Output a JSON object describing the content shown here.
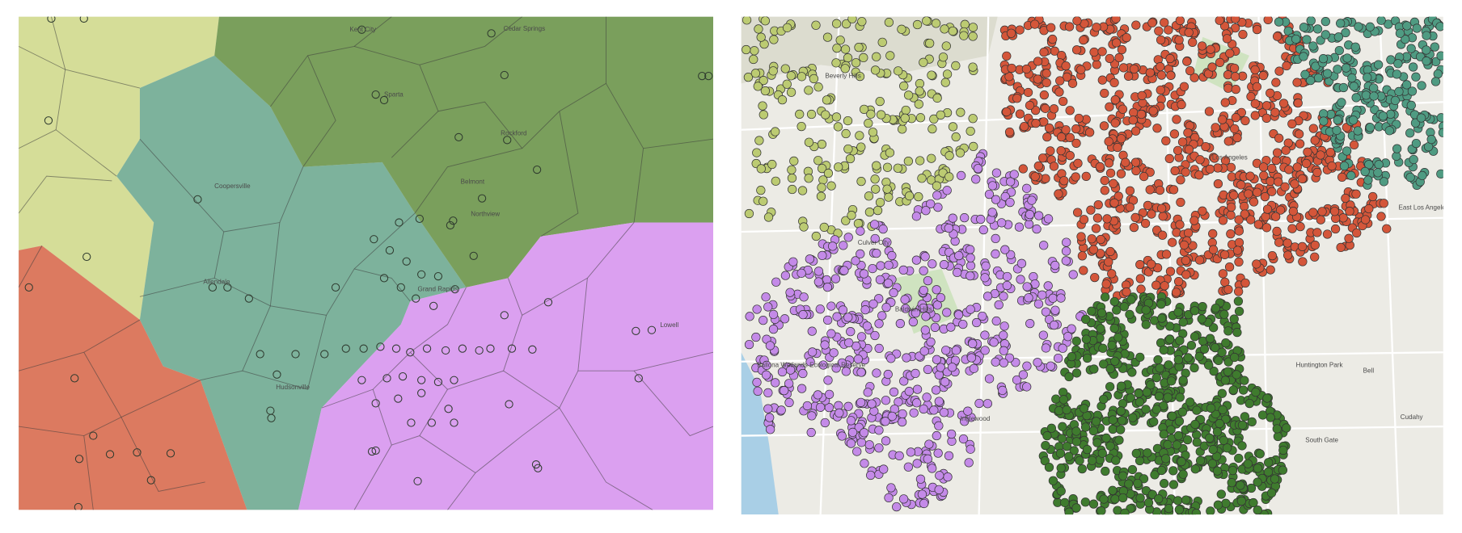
{
  "left_map": {
    "labels": [
      "Kent City",
      "Cedar Springs",
      "Sparta",
      "Rockford",
      "Belmont",
      "Northview",
      "Coopersville",
      "Allendale",
      "Grand Rapids",
      "Hudsonville",
      "Lowell"
    ]
  },
  "right_map": {
    "labels": [
      "Beverly Hills",
      "Culver City",
      "Baldwin Hills",
      "Inglewood",
      "Huntington Park",
      "Bell",
      "South Gate",
      "Cudahy",
      "East Los Angeles",
      "Ballona Wetlands Ecological Reserve",
      "Los Angeles"
    ]
  }
}
